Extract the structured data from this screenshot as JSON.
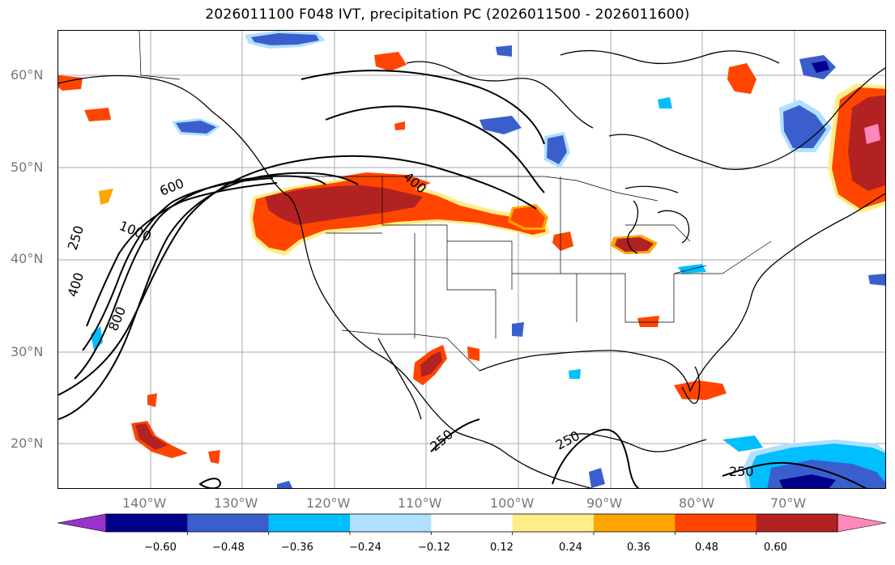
{
  "title": "2026011100 F048 IVT, precipitation PC (2026011500 - 2026011600)",
  "axes": {
    "lat_labels": [
      "60°N",
      "50°N",
      "40°N",
      "30°N",
      "20°N"
    ],
    "lon_labels": [
      "140°W",
      "130°W",
      "120°W",
      "110°W",
      "100°W",
      "90°W",
      "80°W",
      "70°W"
    ],
    "lon_range": [
      -149,
      -59
    ],
    "lat_range": [
      15,
      65
    ]
  },
  "ivt_contours": {
    "levels": [
      250,
      400,
      600,
      800,
      1000
    ],
    "labels": [
      "250",
      "400",
      "600",
      "800",
      "1000",
      "400",
      "250",
      "250",
      "250"
    ]
  },
  "colorbar": {
    "ticks": [
      "−0.60",
      "−0.48",
      "−0.36",
      "−0.24",
      "−0.12",
      "0.12",
      "0.24",
      "0.36",
      "0.48",
      "0.60"
    ],
    "colors": [
      "#9932cc",
      "#00008b",
      "#3a5fcd",
      "#00bfff",
      "#b0e0ff",
      "#ffffff",
      "#ffee88",
      "#ffa500",
      "#ff4500",
      "#b22222",
      "#ff88bb"
    ],
    "extend": "both"
  },
  "precip_pc_colors": {
    "neg_strong": "#3a5fcd",
    "neg_mid": "#00bfff",
    "neg_weak": "#b0e0ff",
    "neg_extreme": "#00008b",
    "pos_weak": "#ffee88",
    "pos_mid": "#ffa500",
    "pos_strong": "#ff4500",
    "pos_very": "#b22222",
    "pos_extreme": "#ff88bb"
  }
}
